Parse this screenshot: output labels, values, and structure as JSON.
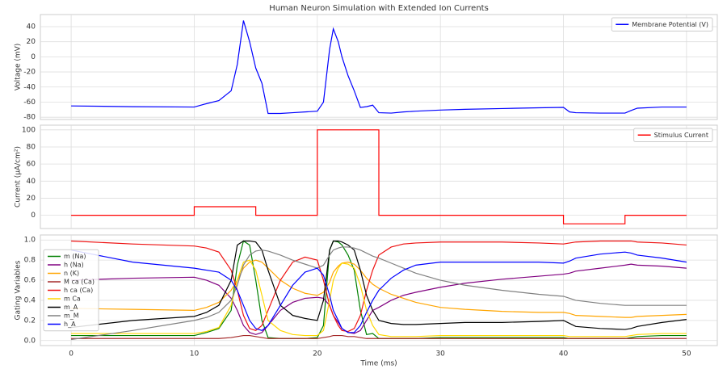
{
  "chart_data": [
    {
      "type": "line",
      "title": "Human Neuron Simulation with Extended Ion Currents",
      "ylabel": "Voltage (mV)",
      "x": [
        0,
        5,
        10,
        11,
        12,
        13,
        13.5,
        14,
        14.5,
        15,
        15.5,
        16,
        17,
        18,
        19,
        20,
        20.5,
        21,
        21.3,
        21.7,
        22,
        22.5,
        23,
        23.5,
        24,
        24.5,
        25,
        26,
        27,
        28,
        30,
        32,
        35,
        38,
        40,
        40.5,
        41,
        43,
        45,
        45.5,
        46,
        48,
        50
      ],
      "series": [
        {
          "name": "Membrane Potential (V)",
          "color": "#0000ff",
          "values": [
            -65,
            -66,
            -66.5,
            -62,
            -58,
            -45,
            -10,
            48,
            20,
            -15,
            -35,
            -75,
            -75,
            -74,
            -73,
            -72,
            -60,
            10,
            37,
            20,
            0,
            -25,
            -45,
            -67,
            -66,
            -64,
            -74,
            -74.5,
            -73,
            -72,
            -70.5,
            -69.5,
            -68.5,
            -67.5,
            -67,
            -73,
            -74,
            -74.5,
            -74.5,
            -71,
            -68,
            -66.5,
            -66.5
          ]
        }
      ],
      "xlim": [
        -2.5,
        52.5
      ],
      "xticks": [
        0,
        10,
        20,
        30,
        40,
        50
      ],
      "show_xtick_labels": false,
      "ylim": [
        -83,
        56
      ],
      "yticks": [
        -80,
        -60,
        -40,
        -20,
        0,
        20,
        40
      ],
      "grid": true,
      "legend": "upper right"
    },
    {
      "type": "line",
      "ylabel": "Current (μA/cm²)",
      "x": [
        0,
        10,
        10,
        15,
        15,
        20,
        20,
        25,
        25,
        40,
        40,
        45,
        45,
        50
      ],
      "series": [
        {
          "name": "Stimulus Current",
          "color": "#ff0000",
          "values": [
            0,
            0,
            10,
            10,
            0,
            0,
            100,
            100,
            0,
            0,
            -10,
            -10,
            0,
            0
          ]
        }
      ],
      "xlim": [
        -2.5,
        52.5
      ],
      "xticks": [
        0,
        10,
        20,
        30,
        40,
        50
      ],
      "show_xtick_labels": false,
      "ylim": [
        -15.5,
        105.5
      ],
      "yticks": [
        0,
        20,
        40,
        60,
        80,
        100
      ],
      "grid": true,
      "legend": "upper right"
    },
    {
      "type": "line",
      "xlabel": "Time (ms)",
      "ylabel": "Gating Variables",
      "x": [
        0,
        5,
        10,
        11,
        12,
        13,
        13.5,
        14,
        14.5,
        15,
        15.5,
        16,
        17,
        18,
        19,
        20,
        20.5,
        21,
        21.3,
        21.7,
        22,
        22.5,
        23,
        23.5,
        24,
        24.5,
        25,
        26,
        27,
        28,
        30,
        32,
        35,
        38,
        40,
        40.5,
        41,
        43,
        45,
        45.5,
        46,
        48,
        50
      ],
      "series": [
        {
          "name": "m (Na)",
          "color": "#008000",
          "values": [
            0.05,
            0.05,
            0.05,
            0.08,
            0.12,
            0.3,
            0.75,
            0.99,
            0.95,
            0.6,
            0.2,
            0.03,
            0.02,
            0.02,
            0.02,
            0.03,
            0.15,
            0.9,
            0.99,
            0.98,
            0.95,
            0.85,
            0.7,
            0.3,
            0.06,
            0.07,
            0.02,
            0.02,
            0.02,
            0.02,
            0.03,
            0.03,
            0.03,
            0.03,
            0.03,
            0.02,
            0.02,
            0.02,
            0.02,
            0.03,
            0.04,
            0.05,
            0.05
          ]
        },
        {
          "name": "h (Na)",
          "color": "#800080",
          "values": [
            0.6,
            0.62,
            0.63,
            0.6,
            0.55,
            0.42,
            0.3,
            0.15,
            0.08,
            0.06,
            0.08,
            0.15,
            0.3,
            0.38,
            0.42,
            0.43,
            0.42,
            0.35,
            0.25,
            0.18,
            0.12,
            0.08,
            0.07,
            0.1,
            0.2,
            0.3,
            0.33,
            0.4,
            0.45,
            0.48,
            0.53,
            0.57,
            0.61,
            0.64,
            0.66,
            0.67,
            0.69,
            0.72,
            0.75,
            0.76,
            0.75,
            0.74,
            0.72
          ]
        },
        {
          "name": "n (K)",
          "color": "#ffa500",
          "values": [
            0.32,
            0.31,
            0.3,
            0.33,
            0.38,
            0.5,
            0.6,
            0.72,
            0.78,
            0.8,
            0.78,
            0.72,
            0.6,
            0.52,
            0.47,
            0.45,
            0.48,
            0.58,
            0.68,
            0.74,
            0.77,
            0.78,
            0.76,
            0.7,
            0.62,
            0.56,
            0.52,
            0.46,
            0.42,
            0.38,
            0.33,
            0.31,
            0.29,
            0.28,
            0.28,
            0.27,
            0.25,
            0.24,
            0.23,
            0.23,
            0.24,
            0.25,
            0.26
          ]
        },
        {
          "name": "M ca (Ca)",
          "color": "#a52a2a",
          "values": [
            0.02,
            0.02,
            0.02,
            0.02,
            0.02,
            0.03,
            0.04,
            0.05,
            0.05,
            0.04,
            0.03,
            0.02,
            0.02,
            0.02,
            0.02,
            0.02,
            0.03,
            0.04,
            0.05,
            0.05,
            0.05,
            0.04,
            0.04,
            0.03,
            0.02,
            0.02,
            0.02,
            0.02,
            0.02,
            0.02,
            0.02,
            0.02,
            0.02,
            0.02,
            0.02,
            0.02,
            0.02,
            0.02,
            0.02,
            0.02,
            0.02,
            0.02,
            0.02
          ]
        },
        {
          "name": "h ca (Ca)",
          "color": "#ee1111",
          "values": [
            0.99,
            0.96,
            0.94,
            0.92,
            0.88,
            0.7,
            0.5,
            0.25,
            0.12,
            0.1,
            0.15,
            0.3,
            0.6,
            0.78,
            0.83,
            0.8,
            0.6,
            0.35,
            0.25,
            0.15,
            0.1,
            0.09,
            0.12,
            0.25,
            0.5,
            0.7,
            0.85,
            0.93,
            0.96,
            0.97,
            0.98,
            0.98,
            0.98,
            0.97,
            0.96,
            0.97,
            0.98,
            0.99,
            0.99,
            0.99,
            0.98,
            0.97,
            0.95
          ]
        },
        {
          "name": "m Ca",
          "color": "#ffd700",
          "values": [
            0.07,
            0.07,
            0.07,
            0.09,
            0.13,
            0.35,
            0.6,
            0.78,
            0.8,
            0.7,
            0.45,
            0.2,
            0.1,
            0.06,
            0.05,
            0.05,
            0.1,
            0.4,
            0.6,
            0.72,
            0.77,
            0.76,
            0.72,
            0.55,
            0.3,
            0.15,
            0.06,
            0.04,
            0.04,
            0.04,
            0.05,
            0.05,
            0.05,
            0.05,
            0.05,
            0.04,
            0.04,
            0.04,
            0.04,
            0.05,
            0.06,
            0.07,
            0.07
          ]
        },
        {
          "name": "m_A",
          "color": "#000000",
          "values": [
            0.13,
            0.2,
            0.24,
            0.28,
            0.35,
            0.6,
            0.95,
            0.99,
            0.99,
            0.98,
            0.9,
            0.7,
            0.35,
            0.25,
            0.22,
            0.2,
            0.4,
            0.9,
            0.99,
            0.99,
            0.98,
            0.95,
            0.9,
            0.7,
            0.45,
            0.3,
            0.2,
            0.17,
            0.16,
            0.16,
            0.17,
            0.18,
            0.18,
            0.19,
            0.2,
            0.17,
            0.14,
            0.12,
            0.11,
            0.12,
            0.14,
            0.18,
            0.21
          ]
        },
        {
          "name": "m_M",
          "color": "#808080",
          "values": [
            0.01,
            0.1,
            0.2,
            0.23,
            0.28,
            0.4,
            0.55,
            0.75,
            0.85,
            0.89,
            0.9,
            0.89,
            0.85,
            0.8,
            0.76,
            0.72,
            0.75,
            0.85,
            0.9,
            0.92,
            0.93,
            0.93,
            0.92,
            0.9,
            0.87,
            0.84,
            0.82,
            0.77,
            0.72,
            0.67,
            0.6,
            0.55,
            0.5,
            0.46,
            0.44,
            0.42,
            0.4,
            0.37,
            0.35,
            0.35,
            0.35,
            0.35,
            0.35
          ]
        },
        {
          "name": "h_A",
          "color": "#0000ff",
          "values": [
            0.9,
            0.78,
            0.72,
            0.7,
            0.68,
            0.6,
            0.5,
            0.35,
            0.2,
            0.12,
            0.1,
            0.15,
            0.35,
            0.55,
            0.68,
            0.72,
            0.65,
            0.45,
            0.3,
            0.2,
            0.12,
            0.08,
            0.08,
            0.15,
            0.28,
            0.4,
            0.5,
            0.62,
            0.7,
            0.75,
            0.78,
            0.78,
            0.78,
            0.78,
            0.77,
            0.79,
            0.82,
            0.86,
            0.88,
            0.87,
            0.85,
            0.82,
            0.78
          ]
        }
      ],
      "xlim": [
        -2.5,
        52.5
      ],
      "xticks": [
        0,
        10,
        20,
        30,
        40,
        50
      ],
      "show_xtick_labels": true,
      "ylim": [
        -0.05,
        1.05
      ],
      "yticks": [
        0.0,
        0.2,
        0.4,
        0.6,
        0.8,
        1.0
      ],
      "grid": true,
      "legend": "center left"
    }
  ]
}
